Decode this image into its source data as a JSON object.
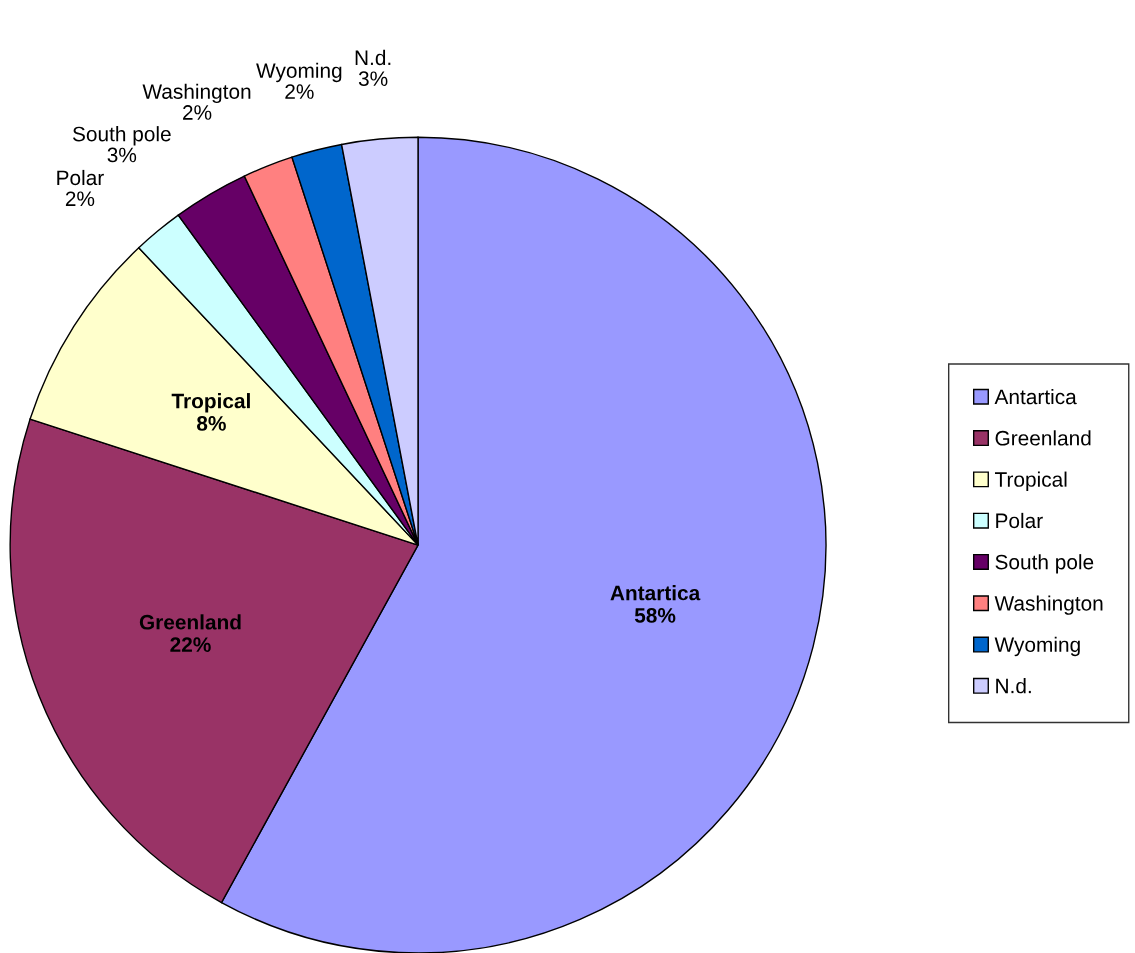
{
  "chart_data": {
    "type": "pie",
    "categories": [
      "Antartica",
      "Greenland",
      "Tropical",
      "Polar",
      "South pole",
      "Washington",
      "Wyoming",
      "N.d."
    ],
    "values": [
      58,
      22,
      8,
      2,
      3,
      2,
      2,
      3
    ],
    "value_labels": [
      "58%",
      "22%",
      "8%",
      "2%",
      "3%",
      "2%",
      "2%",
      "3%"
    ],
    "colors": [
      "#9999ff",
      "#993366",
      "#ffffcc",
      "#ccffff",
      "#660066",
      "#ff8080",
      "#0066cc",
      "#ccccff"
    ],
    "legend": "right"
  }
}
